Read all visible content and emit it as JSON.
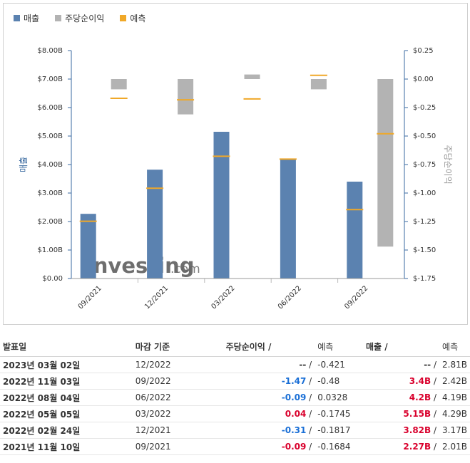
{
  "legend": {
    "revenue": "매출",
    "eps": "주당순이익",
    "forecast": "예측"
  },
  "colors": {
    "revenue": "#5b82b0",
    "eps": "#b3b3b3",
    "forecast": "#f0a828",
    "axis": "#3a6aa0",
    "positive": "#d9002c",
    "negative": "#1a6fd6"
  },
  "watermark": {
    "brand": "Investing",
    "suffix": ".com"
  },
  "chart_data": {
    "type": "bar",
    "categories": [
      "09/2021",
      "12/2021",
      "03/2022",
      "06/2022",
      "09/2022"
    ],
    "ylabel": "매출",
    "y2label": "주당순이익",
    "ylim": [
      0,
      8
    ],
    "y2lim": [
      -1.75,
      0.25
    ],
    "yticks": [
      "$8.00B",
      "$7.00B",
      "$6.00B",
      "$5.00B",
      "$4.00B",
      "$3.00B",
      "$2.00B",
      "$1.00B",
      "$0.00"
    ],
    "y2ticks": [
      "$0.25",
      "$0.00",
      "$-0.25",
      "$-0.50",
      "$-0.75",
      "$-1.00",
      "$-1.25",
      "$-1.50",
      "$-1.75"
    ],
    "grid": false,
    "legend_position": "top-left",
    "series": [
      {
        "name": "매출",
        "axis": "left",
        "values": [
          2.27,
          3.82,
          5.15,
          4.2,
          3.4
        ]
      },
      {
        "name": "예측",
        "axis": "left",
        "values": [
          2.01,
          3.17,
          4.29,
          4.19,
          2.42
        ]
      },
      {
        "name": "주당순이익",
        "axis": "right",
        "values": [
          -0.09,
          -0.31,
          0.04,
          -0.09,
          -1.47
        ]
      },
      {
        "name": "예측",
        "axis": "right",
        "values": [
          -0.1684,
          -0.1817,
          -0.1745,
          0.0328,
          -0.48
        ]
      }
    ]
  },
  "table": {
    "headers": {
      "date": "발표일",
      "period": "마감 기준",
      "eps": "주당순이익",
      "eps_slash": "/",
      "eps_forecast": "예측",
      "rev": "매출",
      "rev_slash": "/",
      "rev_forecast": "예측"
    },
    "rows": [
      {
        "date": "2023년 03월 02일",
        "period": "12/2022",
        "eps": "--",
        "eps_sign": "nil",
        "eps_forecast": "-0.421",
        "rev": "--",
        "rev_sign": "nil",
        "rev_forecast": "2.81B"
      },
      {
        "date": "2022년 11월 03일",
        "period": "09/2022",
        "eps": "-1.47",
        "eps_sign": "neg",
        "eps_forecast": "-0.48",
        "rev": "3.4B",
        "rev_sign": "pos",
        "rev_forecast": "2.42B"
      },
      {
        "date": "2022년 08월 04일",
        "period": "06/2022",
        "eps": "-0.09",
        "eps_sign": "neg",
        "eps_forecast": "0.0328",
        "rev": "4.2B",
        "rev_sign": "pos",
        "rev_forecast": "4.19B"
      },
      {
        "date": "2022년 05월 05일",
        "period": "03/2022",
        "eps": "0.04",
        "eps_sign": "pos",
        "eps_forecast": "-0.1745",
        "rev": "5.15B",
        "rev_sign": "pos",
        "rev_forecast": "4.29B"
      },
      {
        "date": "2022년 02월 24일",
        "period": "12/2021",
        "eps": "-0.31",
        "eps_sign": "neg",
        "eps_forecast": "-0.1817",
        "rev": "3.82B",
        "rev_sign": "pos",
        "rev_forecast": "3.17B"
      },
      {
        "date": "2021년 11월 10일",
        "period": "09/2021",
        "eps": "-0.09",
        "eps_sign": "pos",
        "eps_forecast": "-0.1684",
        "rev": "2.27B",
        "rev_sign": "pos",
        "rev_forecast": "2.01B"
      }
    ]
  }
}
